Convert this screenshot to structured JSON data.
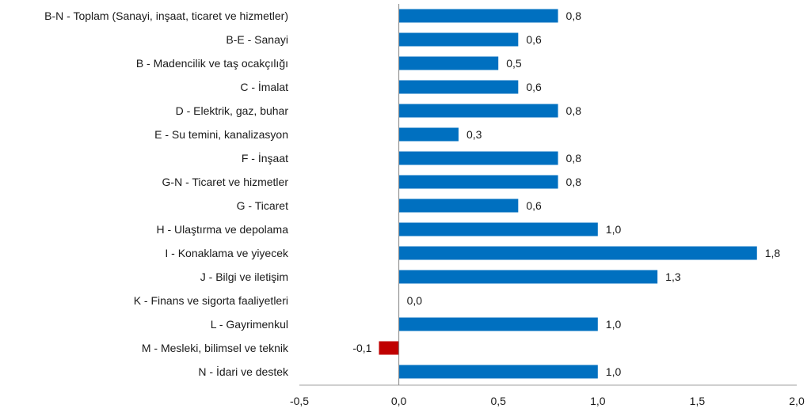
{
  "chart_data": {
    "type": "bar",
    "orientation": "horizontal",
    "title": "",
    "xlabel": "",
    "ylabel": "",
    "xlim": [
      -0.5,
      2.0
    ],
    "x_ticks": [
      -0.5,
      0.0,
      0.5,
      1.0,
      1.5,
      2.0
    ],
    "x_tick_labels": [
      "-0,5",
      "0,0",
      "0,5",
      "1,0",
      "1,5",
      "2,0"
    ],
    "grid": false,
    "legend": "none",
    "colors": {
      "positive": "#0070c0",
      "negative": "#c00000",
      "axis_vertical": "#868686",
      "axis_horizontal": "#bfbfbf"
    },
    "categories": [
      "B-N - Toplam (Sanayi, inşaat, ticaret ve hizmetler)",
      "B-E - Sanayi",
      "B - Madencilik ve taş ocakçılığı",
      "C - İmalat",
      "D - Elektrik, gaz, buhar",
      "E - Su temini, kanalizasyon",
      "F - İnşaat",
      "G-N - Ticaret ve hizmetler",
      "G - Ticaret",
      "H - Ulaştırma ve depolama",
      "I - Konaklama ve yiyecek",
      "J - Bilgi ve iletişim",
      "K - Finans ve sigorta faaliyetleri",
      "L - Gayrimenkul",
      "M - Mesleki, bilimsel ve teknik",
      "N - İdari ve destek"
    ],
    "values": [
      0.8,
      0.6,
      0.5,
      0.6,
      0.8,
      0.3,
      0.8,
      0.8,
      0.6,
      1.0,
      1.8,
      1.3,
      0.0,
      1.0,
      -0.1,
      1.0
    ],
    "data_labels": [
      "0,8",
      "0,6",
      "0,5",
      "0,6",
      "0,8",
      "0,3",
      "0,8",
      "0,8",
      "0,6",
      "1,0",
      "1,8",
      "1,3",
      "0,0",
      "1,0",
      "-0,1",
      "1,0"
    ]
  }
}
